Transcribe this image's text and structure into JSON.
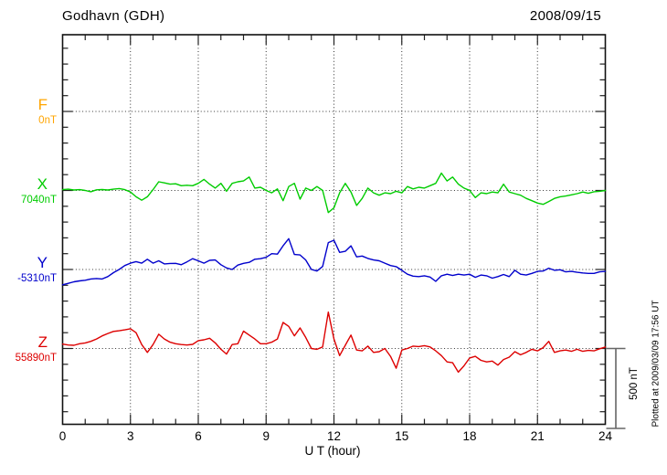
{
  "header": {
    "title": "Godhavn (GDH)",
    "date": "2008/09/15"
  },
  "axes": {
    "x_label": "U T (hour)",
    "x_ticks": [
      0,
      3,
      6,
      9,
      12,
      15,
      18,
      21,
      24
    ],
    "x_range": [
      0,
      24
    ]
  },
  "scale_bar": {
    "label": "500 nT",
    "nT": 500
  },
  "footer": {
    "plotted_note": "Plotted at 2009/03/09 17:56 UT"
  },
  "components": [
    {
      "id": "F",
      "label": "F",
      "baseline_label": "0nT",
      "color": "#FFA500",
      "has_trace": false
    },
    {
      "id": "X",
      "label": "X",
      "baseline_label": "7040nT",
      "color": "#00CC00",
      "has_trace": true
    },
    {
      "id": "Y",
      "label": "Y",
      "baseline_label": "-5310nT",
      "color": "#0000CC",
      "has_trace": true
    },
    {
      "id": "Z",
      "label": "Z",
      "baseline_label": "55890nT",
      "color": "#DD0000",
      "has_trace": true
    }
  ],
  "chart_data": {
    "type": "line",
    "title": "Godhavn (GDH) magnetogram, 2008/09/15",
    "xlabel": "U T (hour)",
    "x_range": [
      0,
      24
    ],
    "x_start": 0,
    "x_step": 0.25,
    "grid": "dotted vertical lines every 3 h; dotted horizontal line at each component baseline",
    "baseline_spacing_nT": 500,
    "scale_bar_nT": 500,
    "series": [
      {
        "name": "X",
        "baseline_nT": 7040,
        "color": "#00CC00",
        "values_nT_offset": [
          5,
          8,
          3,
          5,
          0,
          -8,
          4,
          6,
          3,
          8,
          12,
          5,
          -10,
          -40,
          -62,
          -40,
          5,
          55,
          48,
          40,
          42,
          30,
          33,
          30,
          45,
          70,
          40,
          15,
          45,
          -5,
          45,
          55,
          60,
          85,
          15,
          20,
          0,
          -15,
          10,
          -65,
          25,
          45,
          -55,
          15,
          0,
          25,
          0,
          -140,
          -110,
          -15,
          45,
          -10,
          -95,
          -50,
          15,
          -15,
          -30,
          -15,
          -20,
          -5,
          -15,
          25,
          10,
          20,
          15,
          30,
          45,
          110,
          60,
          85,
          40,
          15,
          0,
          -45,
          -15,
          -20,
          -10,
          -15,
          40,
          -10,
          -20,
          -30,
          -50,
          -65,
          -80,
          -88,
          -70,
          -50,
          -40,
          -35,
          -28,
          -20,
          -10,
          -18,
          -8,
          -5,
          0
        ]
      },
      {
        "name": "Y",
        "baseline_nT": -5310,
        "color": "#0000CC",
        "values_nT_offset": [
          -97,
          -88,
          -78,
          -72,
          -68,
          -60,
          -57,
          -60,
          -45,
          -20,
          0,
          25,
          40,
          50,
          40,
          65,
          40,
          55,
          35,
          38,
          39,
          30,
          48,
          68,
          55,
          40,
          58,
          60,
          30,
          10,
          0,
          28,
          39,
          45,
          65,
          68,
          77,
          100,
          97,
          150,
          195,
          95,
          92,
          60,
          0,
          -10,
          19,
          170,
          185,
          108,
          115,
          150,
          80,
          85,
          70,
          60,
          55,
          40,
          25,
          18,
          -5,
          -30,
          -42,
          -45,
          -40,
          -48,
          -75,
          -40,
          -30,
          -38,
          -30,
          -35,
          -30,
          -50,
          -35,
          -40,
          -55,
          -45,
          -32,
          -45,
          -5,
          -30,
          -35,
          -25,
          -12,
          -10,
          8,
          -5,
          -2,
          -15,
          -12,
          -18,
          -22,
          -25,
          -25,
          -15,
          -12
        ]
      },
      {
        "name": "Z",
        "baseline_nT": 55890,
        "color": "#DD0000",
        "values_nT_offset": [
          28,
          22,
          20,
          30,
          35,
          45,
          60,
          80,
          95,
          108,
          112,
          118,
          125,
          100,
          25,
          -25,
          25,
          90,
          60,
          40,
          30,
          25,
          22,
          26,
          50,
          55,
          65,
          35,
          -5,
          -35,
          25,
          30,
          110,
          85,
          60,
          30,
          30,
          40,
          60,
          165,
          140,
          80,
          130,
          70,
          0,
          -5,
          10,
          230,
          60,
          -45,
          20,
          85,
          -10,
          -15,
          15,
          -25,
          -20,
          0,
          -50,
          -125,
          -10,
          0,
          15,
          12,
          18,
          10,
          -15,
          -45,
          -85,
          -90,
          -150,
          -110,
          -60,
          -50,
          -75,
          -85,
          -80,
          -105,
          -70,
          -55,
          -20,
          -40,
          -25,
          -5,
          -15,
          5,
          45,
          -25,
          -15,
          -10,
          -18,
          -5,
          -18,
          -12,
          -15,
          -2,
          9
        ]
      }
    ]
  }
}
